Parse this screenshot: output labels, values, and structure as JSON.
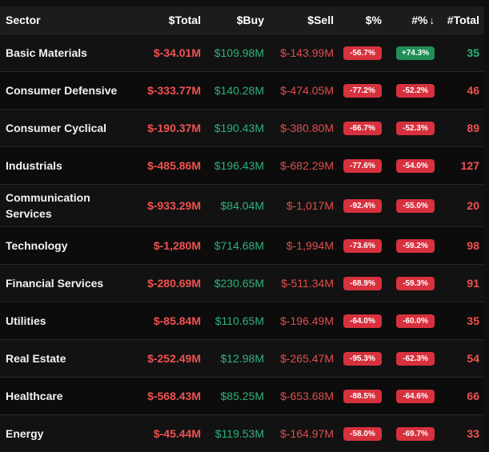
{
  "headers": {
    "sector": "Sector",
    "total": "$Total",
    "buy": "$Buy",
    "sell": "$Sell",
    "pct": "$%",
    "count_pct": "#%",
    "count_total": "#Total"
  },
  "sort_icon": "arrow-down-icon",
  "colors": {
    "negative": "#f05252",
    "positive": "#2bb37a",
    "badge_red": "#d7313e",
    "badge_green": "#1f8f55"
  },
  "rows": [
    {
      "sector": "Basic Materials",
      "total": "$-34.01M",
      "buy": "$109.98M",
      "sell": "$-143.99M",
      "pct": "-56.7%",
      "count_pct": "+74.3%",
      "count_total": "35"
    },
    {
      "sector": "Consumer Defensive",
      "total": "$-333.77M",
      "buy": "$140.28M",
      "sell": "$-474.05M",
      "pct": "-77.2%",
      "count_pct": "-52.2%",
      "count_total": "46"
    },
    {
      "sector": "Consumer Cyclical",
      "total": "$-190.37M",
      "buy": "$190.43M",
      "sell": "$-380.80M",
      "pct": "-66.7%",
      "count_pct": "-52.3%",
      "count_total": "89"
    },
    {
      "sector": "Industrials",
      "total": "$-485.86M",
      "buy": "$196.43M",
      "sell": "$-682.29M",
      "pct": "-77.6%",
      "count_pct": "-54.0%",
      "count_total": "127"
    },
    {
      "sector": "Communication Services",
      "total": "$-933.29M",
      "buy": "$84.04M",
      "sell": "$-1,017M",
      "pct": "-92.4%",
      "count_pct": "-55.0%",
      "count_total": "20"
    },
    {
      "sector": "Technology",
      "total": "$-1,280M",
      "buy": "$714.68M",
      "sell": "$-1,994M",
      "pct": "-73.6%",
      "count_pct": "-59.2%",
      "count_total": "98"
    },
    {
      "sector": "Financial Services",
      "total": "$-280.69M",
      "buy": "$230.65M",
      "sell": "$-511.34M",
      "pct": "-68.9%",
      "count_pct": "-59.3%",
      "count_total": "91"
    },
    {
      "sector": "Utilities",
      "total": "$-85.84M",
      "buy": "$110.65M",
      "sell": "$-196.49M",
      "pct": "-64.0%",
      "count_pct": "-60.0%",
      "count_total": "35"
    },
    {
      "sector": "Real Estate",
      "total": "$-252.49M",
      "buy": "$12.98M",
      "sell": "$-265.47M",
      "pct": "-95.3%",
      "count_pct": "-62.3%",
      "count_total": "54"
    },
    {
      "sector": "Healthcare",
      "total": "$-568.43M",
      "buy": "$85.25M",
      "sell": "$-653.68M",
      "pct": "-88.5%",
      "count_pct": "-64.6%",
      "count_total": "66"
    },
    {
      "sector": "Energy",
      "total": "$-45.44M",
      "buy": "$119.53M",
      "sell": "$-164.97M",
      "pct": "-58.0%",
      "count_pct": "-69.7%",
      "count_total": "33"
    }
  ]
}
